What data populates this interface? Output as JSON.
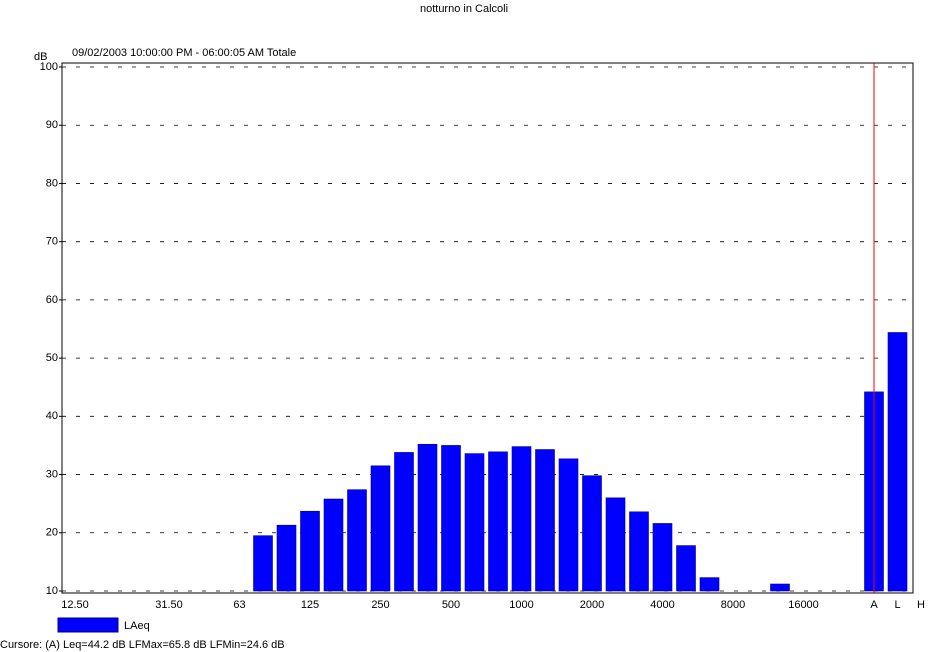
{
  "chart_data": {
    "type": "bar",
    "title": "notturno in Calcoli",
    "subtitle": "09/02/2003 10:00:00 PM - 06:00:05 AM  Totale",
    "y_label": "dB",
    "categories": [
      "12.50",
      null,
      null,
      null,
      "31.50",
      null,
      null,
      "63",
      null,
      null,
      "125",
      null,
      null,
      "250",
      null,
      null,
      "500",
      null,
      null,
      "1000",
      null,
      null,
      "2000",
      null,
      null,
      "4000",
      null,
      null,
      "8000",
      null,
      null,
      "16000",
      null,
      null,
      "A",
      "L",
      "H"
    ],
    "series": [
      {
        "name": "LAeq",
        "color": "#0000ff",
        "values": [
          null,
          null,
          null,
          null,
          null,
          null,
          null,
          null,
          19.5,
          21.3,
          23.7,
          25.8,
          27.4,
          31.5,
          33.8,
          35.2,
          35.0,
          33.6,
          33.9,
          34.8,
          34.3,
          32.7,
          29.8,
          26.0,
          23.6,
          21.6,
          17.8,
          12.3,
          null,
          null,
          11.2,
          null,
          null,
          null,
          44.2,
          54.4,
          null
        ]
      }
    ],
    "ylim": [
      10,
      100
    ],
    "yticks": [
      10,
      20,
      30,
      40,
      50,
      60,
      70,
      80,
      90,
      100
    ],
    "grid": true,
    "cursor": {
      "category": "A",
      "color": "#ff0000"
    },
    "cursor_text": "Cursore: (A)  Leq=44.2 dB  LFMax=65.8 dB  LFMin=24.6 dB"
  }
}
